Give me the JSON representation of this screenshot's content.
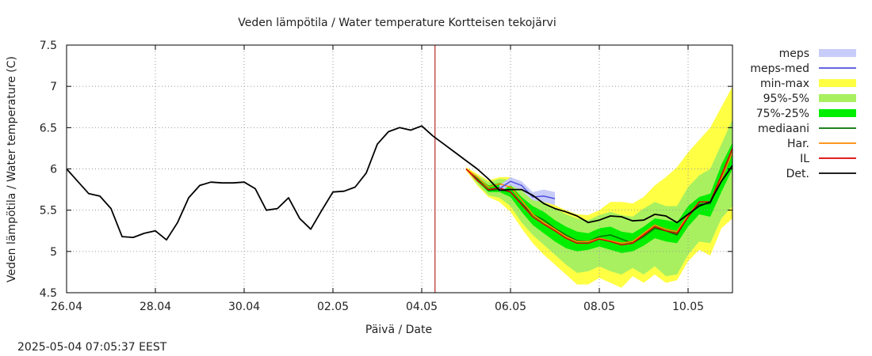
{
  "footer": {
    "timestamp": "2025-05-04 07:05:37 EEST"
  },
  "chart_data": {
    "type": "line",
    "title": "Veden lämpötila / Water temperature Kortteisen tekojärvi",
    "xlabel": "Päivä / Date",
    "ylabel": "Veden lämpötila / Water temperature (C)",
    "xlim": [
      0,
      15
    ],
    "ylim": [
      4.5,
      7.5
    ],
    "xticks": [
      {
        "value": 0,
        "label": "26.04"
      },
      {
        "value": 2,
        "label": "28.04"
      },
      {
        "value": 4,
        "label": "30.04"
      },
      {
        "value": 6,
        "label": "02.05"
      },
      {
        "value": 8,
        "label": "04.05"
      },
      {
        "value": 10,
        "label": "06.05"
      },
      {
        "value": 12,
        "label": "08.05"
      },
      {
        "value": 14,
        "label": "10.05"
      }
    ],
    "yticks": [
      4.5,
      5,
      5.5,
      6,
      6.5,
      7,
      7.5
    ],
    "ytick_labels": [
      "4.5",
      "5",
      "5.5",
      "6",
      "6.5",
      "7",
      "7.5"
    ],
    "grid": true,
    "now_marker": 8.3,
    "legend_position": "right",
    "legend": [
      {
        "key": "meps",
        "label": "meps",
        "kind": "band",
        "color": "#c8ccf8"
      },
      {
        "key": "meps_med",
        "label": "meps-med",
        "kind": "line",
        "color": "#5050dd"
      },
      {
        "key": "minmax",
        "label": "min-max",
        "kind": "band",
        "color": "#ffff44"
      },
      {
        "key": "p95_5",
        "label": "95%-5%",
        "kind": "band",
        "color": "#a8f060"
      },
      {
        "key": "p75_25",
        "label": "75%-25%",
        "kind": "band",
        "color": "#00ee00"
      },
      {
        "key": "mediaani",
        "label": "mediaani",
        "kind": "line",
        "color": "#007000"
      },
      {
        "key": "har",
        "label": "Har.",
        "kind": "line",
        "color": "#ff8800"
      },
      {
        "key": "il",
        "label": "IL",
        "kind": "line",
        "color": "#dd0000"
      },
      {
        "key": "det",
        "label": "Det.",
        "kind": "line",
        "color": "#000000"
      }
    ],
    "colors": {
      "now_marker": "#aa0000",
      "grid": "#999999"
    },
    "series": {
      "observed": {
        "x": [
          0,
          0.25,
          0.5,
          0.75,
          1,
          1.25,
          1.5,
          1.75,
          2,
          2.25,
          2.5,
          2.75,
          3,
          3.25,
          3.5,
          3.75,
          4,
          4.25,
          4.5,
          4.75,
          5,
          5.25,
          5.5,
          5.75,
          6,
          6.25,
          6.5,
          6.75,
          7,
          7.25,
          7.5,
          7.75,
          8,
          8.25
        ],
        "y": [
          6.0,
          5.85,
          5.7,
          5.67,
          5.52,
          5.18,
          5.17,
          5.22,
          5.25,
          5.14,
          5.35,
          5.65,
          5.8,
          5.84,
          5.83,
          5.83,
          5.84,
          5.76,
          5.5,
          5.52,
          5.65,
          5.4,
          5.27,
          5.5,
          5.72,
          5.73,
          5.78,
          5.95,
          6.3,
          6.45,
          6.5,
          6.47,
          6.52,
          6.4
        ]
      },
      "det": {
        "x": [
          8.25,
          8.5,
          8.75,
          9,
          9.25,
          9.5,
          9.75,
          10,
          10.25,
          10.5,
          10.75,
          11,
          11.25,
          11.5,
          11.75,
          12,
          12.25,
          12.5,
          12.75,
          13,
          13.25,
          13.5,
          13.75,
          14,
          14.25,
          14.5,
          14.75,
          15
        ],
        "y": [
          6.4,
          6.3,
          6.2,
          6.1,
          6.0,
          5.88,
          5.74,
          5.75,
          5.75,
          5.68,
          5.58,
          5.52,
          5.48,
          5.43,
          5.35,
          5.38,
          5.43,
          5.42,
          5.37,
          5.38,
          5.45,
          5.43,
          5.35,
          5.45,
          5.55,
          5.6,
          5.85,
          6.04
        ]
      },
      "x_fc": [
        9,
        9.25,
        9.5,
        9.75,
        10,
        10.25,
        10.5,
        10.75,
        11,
        11.25,
        11.5,
        11.75,
        12,
        12.25,
        12.5,
        12.75,
        13,
        13.25,
        13.5,
        13.75,
        14,
        14.25,
        14.5,
        14.75,
        15
      ],
      "mediaani": [
        6.0,
        5.88,
        5.74,
        5.75,
        5.72,
        5.58,
        5.45,
        5.38,
        5.28,
        5.2,
        5.13,
        5.12,
        5.18,
        5.2,
        5.15,
        5.1,
        5.18,
        5.28,
        5.25,
        5.2,
        5.42,
        5.57,
        5.58,
        5.9,
        6.2
      ],
      "il": [
        6.0,
        5.86,
        5.75,
        5.77,
        5.72,
        5.57,
        5.42,
        5.33,
        5.25,
        5.16,
        5.1,
        5.1,
        5.15,
        5.12,
        5.08,
        5.1,
        5.2,
        5.3,
        5.25,
        5.22,
        5.42,
        5.6,
        5.6,
        5.92,
        6.25
      ],
      "har": [
        6.0,
        5.9,
        5.78,
        5.82,
        5.78,
        5.62,
        5.45,
        5.35,
        5.27,
        5.18,
        5.12,
        5.12,
        5.16,
        5.13,
        5.1,
        5.12,
        5.22,
        5.32,
        5.27,
        5.24,
        5.44,
        5.6,
        5.6,
        5.88,
        6.2
      ],
      "p75_25_low": [
        6.0,
        5.85,
        5.72,
        5.72,
        5.66,
        5.48,
        5.32,
        5.22,
        5.12,
        5.04,
        5.0,
        5.02,
        5.06,
        5.02,
        4.98,
        5.0,
        5.07,
        5.16,
        5.12,
        5.1,
        5.3,
        5.45,
        5.42,
        5.72,
        6.0
      ],
      "p75_25_high": [
        6.0,
        5.9,
        5.8,
        5.83,
        5.8,
        5.66,
        5.55,
        5.48,
        5.38,
        5.3,
        5.24,
        5.22,
        5.28,
        5.3,
        5.24,
        5.22,
        5.3,
        5.4,
        5.38,
        5.35,
        5.55,
        5.66,
        5.7,
        6.05,
        6.32
      ],
      "p95_5_low": [
        6.0,
        5.82,
        5.68,
        5.65,
        5.55,
        5.35,
        5.2,
        5.08,
        4.96,
        4.84,
        4.74,
        4.76,
        4.82,
        4.76,
        4.72,
        4.8,
        4.72,
        4.82,
        4.7,
        4.72,
        4.96,
        5.12,
        5.1,
        5.4,
        5.55
      ],
      "p95_5_high": [
        6.0,
        5.92,
        5.84,
        5.88,
        5.87,
        5.75,
        5.66,
        5.6,
        5.52,
        5.45,
        5.4,
        5.38,
        5.44,
        5.48,
        5.44,
        5.42,
        5.52,
        5.6,
        5.55,
        5.55,
        5.78,
        5.92,
        6.0,
        6.3,
        6.6
      ],
      "minmax_low": [
        5.98,
        5.8,
        5.66,
        5.6,
        5.48,
        5.28,
        5.1,
        4.96,
        4.84,
        4.72,
        4.6,
        4.6,
        4.68,
        4.62,
        4.56,
        4.7,
        4.62,
        4.72,
        4.62,
        4.65,
        4.88,
        5.02,
        4.95,
        5.28,
        5.4
      ],
      "minmax_high": [
        6.02,
        5.94,
        5.86,
        5.9,
        5.9,
        5.78,
        5.7,
        5.64,
        5.56,
        5.5,
        5.45,
        5.44,
        5.5,
        5.6,
        5.6,
        5.58,
        5.66,
        5.8,
        5.9,
        6.02,
        6.2,
        6.35,
        6.5,
        6.75,
        7.0
      ],
      "x_meps": [
        9.75,
        10,
        10.25,
        10.5,
        10.75,
        11
      ],
      "meps_low": [
        5.72,
        5.8,
        5.74,
        5.62,
        5.6,
        5.56
      ],
      "meps_high": [
        5.8,
        5.9,
        5.85,
        5.72,
        5.75,
        5.72
      ],
      "meps_med": [
        5.76,
        5.85,
        5.8,
        5.66,
        5.67,
        5.64
      ]
    }
  }
}
